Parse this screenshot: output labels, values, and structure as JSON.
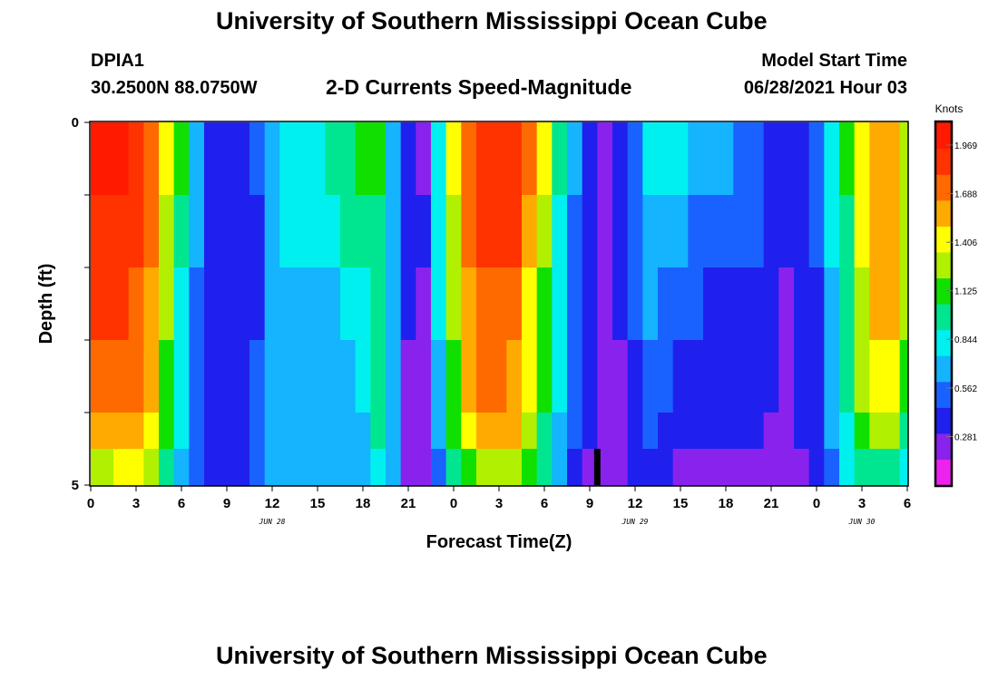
{
  "header": {
    "title": "University of Southern Mississippi Ocean Cube",
    "station": "DPIA1",
    "coords": "30.2500N  88.0750W",
    "product": "2-D Currents Speed-Magnitude",
    "model_label": "Model Start Time",
    "model_time": "06/28/2021 Hour 03"
  },
  "footer": {
    "title": "University of Southern Mississippi Ocean Cube"
  },
  "colors": {
    "palette": [
      "#ee22ee",
      "#8a22ee",
      "#2020ee",
      "#1a62ff",
      "#14b4ff",
      "#00f0f0",
      "#00e690",
      "#10e000",
      "#b0f000",
      "#ffff00",
      "#ffaa00",
      "#ff6a00",
      "#ff3300",
      "#ff1a00"
    ],
    "marker": "#000000"
  },
  "chart_data": {
    "type": "heatmap",
    "title": "2-D Currents Speed-Magnitude",
    "xlabel": "Forecast Time(Z)",
    "ylabel": "Depth (ft)",
    "x_ticks": [
      "0",
      "3",
      "6",
      "9",
      "12",
      "15",
      "18",
      "21",
      "0",
      "3",
      "6",
      "9",
      "12",
      "15",
      "18",
      "21",
      "0",
      "3",
      "6"
    ],
    "x_range_hours": [
      0,
      54
    ],
    "date_labels": [
      {
        "hour": 12,
        "label": "JUN 28"
      },
      {
        "hour": 36,
        "label": "JUN 29"
      },
      {
        "hour": 51,
        "label": "JUN 30"
      }
    ],
    "y_ticks": [
      "0",
      "5"
    ],
    "y_range": [
      0,
      5
    ],
    "colorbar": {
      "label": "Knots",
      "ticks": [
        "1.969",
        "1.688",
        "1.406",
        "1.125",
        "0.844",
        "0.562",
        "0.281"
      ],
      "range": [
        0,
        2.1
      ]
    },
    "current_time_marker_hour": 33.5,
    "depth_levels": [
      0,
      1,
      2,
      3,
      4,
      4.5
    ],
    "hours": [
      0,
      1,
      2,
      3,
      4,
      5,
      6,
      7,
      8,
      9,
      10,
      11,
      12,
      13,
      14,
      15,
      16,
      17,
      18,
      19,
      20,
      21,
      22,
      23,
      24,
      25,
      26,
      27,
      28,
      29,
      30,
      31,
      32,
      33,
      34,
      35,
      36,
      37,
      38,
      39,
      40,
      41,
      42,
      43,
      44,
      45,
      46,
      47,
      48,
      49,
      50,
      51,
      52,
      53,
      54
    ],
    "speed_knots": [
      [
        1.97,
        1.97,
        1.97,
        1.95,
        1.75,
        1.45,
        1.05,
        0.7,
        0.4,
        0.3,
        0.3,
        0.45,
        0.7,
        0.8,
        0.85,
        0.88,
        0.9,
        0.95,
        1.05,
        1.1,
        0.7,
        0.3,
        0.28,
        0.85,
        1.35,
        1.75,
        1.93,
        1.95,
        1.9,
        1.7,
        1.35,
        1.0,
        0.6,
        0.3,
        0.28,
        0.3,
        0.5,
        0.78,
        0.78,
        0.75,
        0.65,
        0.6,
        0.6,
        0.55,
        0.55,
        0.35,
        0.3,
        0.35,
        0.5,
        0.8,
        1.05,
        1.4,
        1.6,
        1.6,
        1.3
      ],
      [
        1.9,
        1.9,
        1.9,
        1.87,
        1.7,
        1.3,
        0.9,
        0.6,
        0.4,
        0.3,
        0.3,
        0.4,
        0.65,
        0.8,
        0.85,
        0.85,
        0.85,
        0.9,
        0.97,
        1.0,
        0.7,
        0.35,
        0.3,
        0.8,
        1.3,
        1.7,
        1.85,
        1.85,
        1.8,
        1.55,
        1.25,
        0.85,
        0.5,
        0.3,
        0.28,
        0.3,
        0.5,
        0.72,
        0.7,
        0.6,
        0.55,
        0.5,
        0.5,
        0.45,
        0.45,
        0.32,
        0.3,
        0.32,
        0.45,
        0.75,
        1.0,
        1.35,
        1.55,
        1.55,
        1.25
      ],
      [
        1.8,
        1.8,
        1.8,
        1.75,
        1.6,
        1.2,
        0.85,
        0.55,
        0.4,
        0.3,
        0.3,
        0.4,
        0.65,
        0.7,
        0.7,
        0.7,
        0.72,
        0.75,
        0.88,
        0.98,
        0.7,
        0.32,
        0.28,
        0.75,
        1.2,
        1.6,
        1.75,
        1.75,
        1.7,
        1.45,
        1.15,
        0.8,
        0.45,
        0.3,
        0.28,
        0.3,
        0.45,
        0.62,
        0.58,
        0.5,
        0.45,
        0.4,
        0.4,
        0.38,
        0.4,
        0.3,
        0.28,
        0.3,
        0.42,
        0.7,
        0.95,
        1.3,
        1.5,
        1.5,
        1.2
      ],
      [
        1.75,
        1.75,
        1.75,
        1.7,
        1.55,
        1.15,
        0.8,
        0.5,
        0.38,
        0.3,
        0.3,
        0.45,
        0.65,
        0.68,
        0.68,
        0.68,
        0.68,
        0.68,
        0.78,
        0.95,
        0.7,
        0.28,
        0.26,
        0.72,
        1.15,
        1.55,
        1.7,
        1.7,
        1.65,
        1.4,
        1.1,
        0.75,
        0.45,
        0.3,
        0.26,
        0.28,
        0.4,
        0.5,
        0.48,
        0.4,
        0.38,
        0.35,
        0.35,
        0.35,
        0.38,
        0.3,
        0.28,
        0.3,
        0.42,
        0.68,
        0.92,
        1.25,
        1.4,
        1.4,
        1.15
      ],
      [
        1.65,
        1.65,
        1.65,
        1.6,
        1.4,
        1.05,
        0.75,
        0.5,
        0.38,
        0.3,
        0.32,
        0.5,
        0.6,
        0.6,
        0.6,
        0.6,
        0.6,
        0.62,
        0.7,
        0.9,
        0.7,
        0.28,
        0.22,
        0.65,
        1.05,
        1.4,
        1.55,
        1.55,
        1.5,
        1.3,
        1.0,
        0.7,
        0.45,
        0.3,
        0.22,
        0.25,
        0.35,
        0.45,
        0.4,
        0.35,
        0.32,
        0.3,
        0.3,
        0.3,
        0.32,
        0.28,
        0.26,
        0.3,
        0.4,
        0.6,
        0.85,
        1.1,
        1.2,
        1.2,
        1.0
      ],
      [
        1.2,
        1.3,
        1.4,
        1.4,
        1.3,
        1.0,
        0.7,
        0.48,
        0.35,
        0.3,
        0.35,
        0.55,
        0.6,
        0.6,
        0.6,
        0.6,
        0.6,
        0.6,
        0.65,
        0.8,
        0.6,
        0.25,
        0.2,
        0.55,
        0.9,
        1.15,
        1.25,
        1.3,
        1.25,
        1.1,
        0.9,
        0.65,
        0.42,
        0.28,
        0.2,
        0.22,
        0.3,
        0.35,
        0.32,
        0.28,
        0.26,
        0.25,
        0.25,
        0.25,
        0.25,
        0.24,
        0.22,
        0.28,
        0.4,
        0.55,
        0.8,
        0.95,
        1.0,
        0.95,
        0.85
      ]
    ]
  }
}
